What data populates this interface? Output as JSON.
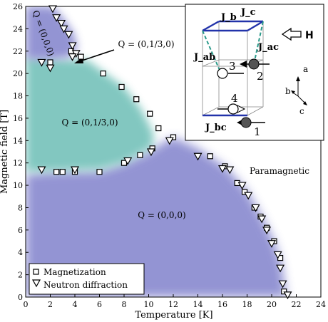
{
  "chart_data": {
    "type": "scatter",
    "xlabel": "Temperature [K]",
    "ylabel": "Magnetic field [T]",
    "xlim": [
      0,
      24
    ],
    "ylim": [
      0,
      26
    ],
    "x_ticks": [
      0,
      2,
      4,
      6,
      8,
      10,
      12,
      14,
      16,
      18,
      20,
      22,
      24
    ],
    "y_ticks": [
      0,
      2,
      4,
      6,
      8,
      10,
      12,
      14,
      16,
      18,
      20,
      22,
      24,
      26
    ],
    "colors": {
      "phase_000": "#8e8fd1",
      "phase_0130": "#7cc5bd",
      "marker": "#000000",
      "inset_bond": "#2233aa",
      "inset_bond_dashed": "#2a9a8a"
    },
    "regions": {
      "top_left_label": "Q = (0,0,0)",
      "middle_label": "Q = (0,1/3,0)",
      "bottom_label": "Q = (0,0,0)",
      "right_label": "Paramagnetic",
      "annotation": "Q = (0,1/3,0)"
    },
    "legend": {
      "position": "bottom-left",
      "entries": [
        "Magnetization",
        "Neutron diffraction"
      ]
    },
    "series": [
      {
        "name": "Magnetization",
        "marker": "square",
        "points": [
          [
            2.5,
            11.2
          ],
          [
            3.0,
            11.2
          ],
          [
            4.0,
            11.2
          ],
          [
            6.0,
            11.2
          ],
          [
            8.0,
            12.0
          ],
          [
            9.3,
            12.7
          ],
          [
            10.3,
            13.3
          ],
          [
            12.0,
            14.3
          ],
          [
            15.0,
            12.6
          ],
          [
            16.2,
            11.7
          ],
          [
            17.2,
            10.2
          ],
          [
            17.8,
            9.4
          ],
          [
            18.6,
            8.0
          ],
          [
            19.1,
            7.2
          ],
          [
            19.6,
            6.2
          ],
          [
            20.2,
            5.0
          ],
          [
            20.7,
            3.5
          ],
          [
            21.0,
            0.5
          ],
          [
            6.3,
            20.0
          ],
          [
            7.8,
            18.8
          ],
          [
            9.0,
            17.7
          ],
          [
            10.1,
            16.4
          ],
          [
            10.8,
            15.1
          ],
          [
            2.0,
            21.0
          ],
          [
            3.7,
            22.0
          ],
          [
            4.5,
            21.5
          ]
        ]
      },
      {
        "name": "Neutron diffraction",
        "marker": "triangle",
        "points": [
          [
            2.2,
            25.8
          ],
          [
            2.5,
            25.0
          ],
          [
            2.9,
            24.5
          ],
          [
            3.1,
            24.0
          ],
          [
            3.5,
            23.5
          ],
          [
            3.8,
            22.5
          ],
          [
            4.1,
            21.8
          ],
          [
            3.8,
            21.5
          ],
          [
            1.3,
            21.0
          ],
          [
            2.0,
            20.5
          ],
          [
            1.3,
            11.4
          ],
          [
            4.0,
            11.4
          ],
          [
            8.3,
            12.2
          ],
          [
            10.2,
            13.0
          ],
          [
            11.7,
            14.0
          ],
          [
            14.0,
            12.6
          ],
          [
            16.0,
            11.5
          ],
          [
            16.6,
            11.4
          ],
          [
            17.6,
            10.0
          ],
          [
            18.1,
            9.1
          ],
          [
            18.7,
            8.0
          ],
          [
            19.2,
            7.0
          ],
          [
            19.6,
            6.0
          ],
          [
            20.0,
            4.8
          ],
          [
            20.5,
            3.8
          ],
          [
            20.7,
            2.6
          ],
          [
            20.9,
            1.2
          ],
          [
            21.3,
            0.2
          ]
        ]
      }
    ],
    "inset": {
      "bond_labels": [
        "J_b",
        "J_c",
        "J_ab",
        "J_ac",
        "J_bc"
      ],
      "site_labels": [
        "3",
        "2",
        "4",
        "1"
      ],
      "field_label": "H",
      "axis_labels": [
        "a",
        "b",
        "c"
      ]
    }
  }
}
